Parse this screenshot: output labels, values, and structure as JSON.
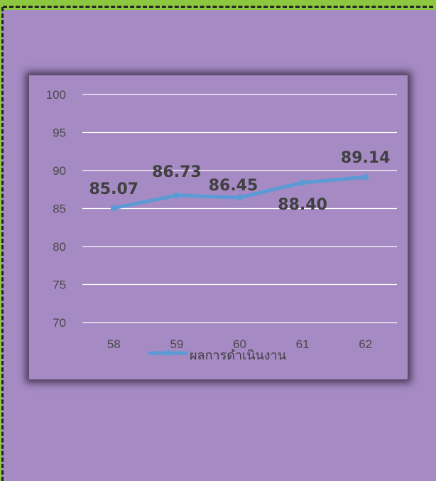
{
  "chart_data": {
    "type": "line",
    "categories": [
      "58",
      "59",
      "60",
      "61",
      "62"
    ],
    "series": [
      {
        "name": "ผลการดำเนินงาน",
        "values": [
          85.07,
          86.73,
          86.45,
          88.4,
          89.14
        ]
      }
    ],
    "data_labels": [
      "85.07",
      "86.73",
      "86.45",
      "88.40",
      "89.14"
    ],
    "y_ticks": [
      "70",
      "75",
      "80",
      "85",
      "90",
      "95",
      "100"
    ],
    "ylim": [
      70,
      100
    ],
    "grid": true,
    "legend_position": "bottom",
    "colors": {
      "line": "#5b9bd5",
      "gridline": "#ffffff",
      "background": "#a68ac4",
      "label": "#404040"
    }
  }
}
